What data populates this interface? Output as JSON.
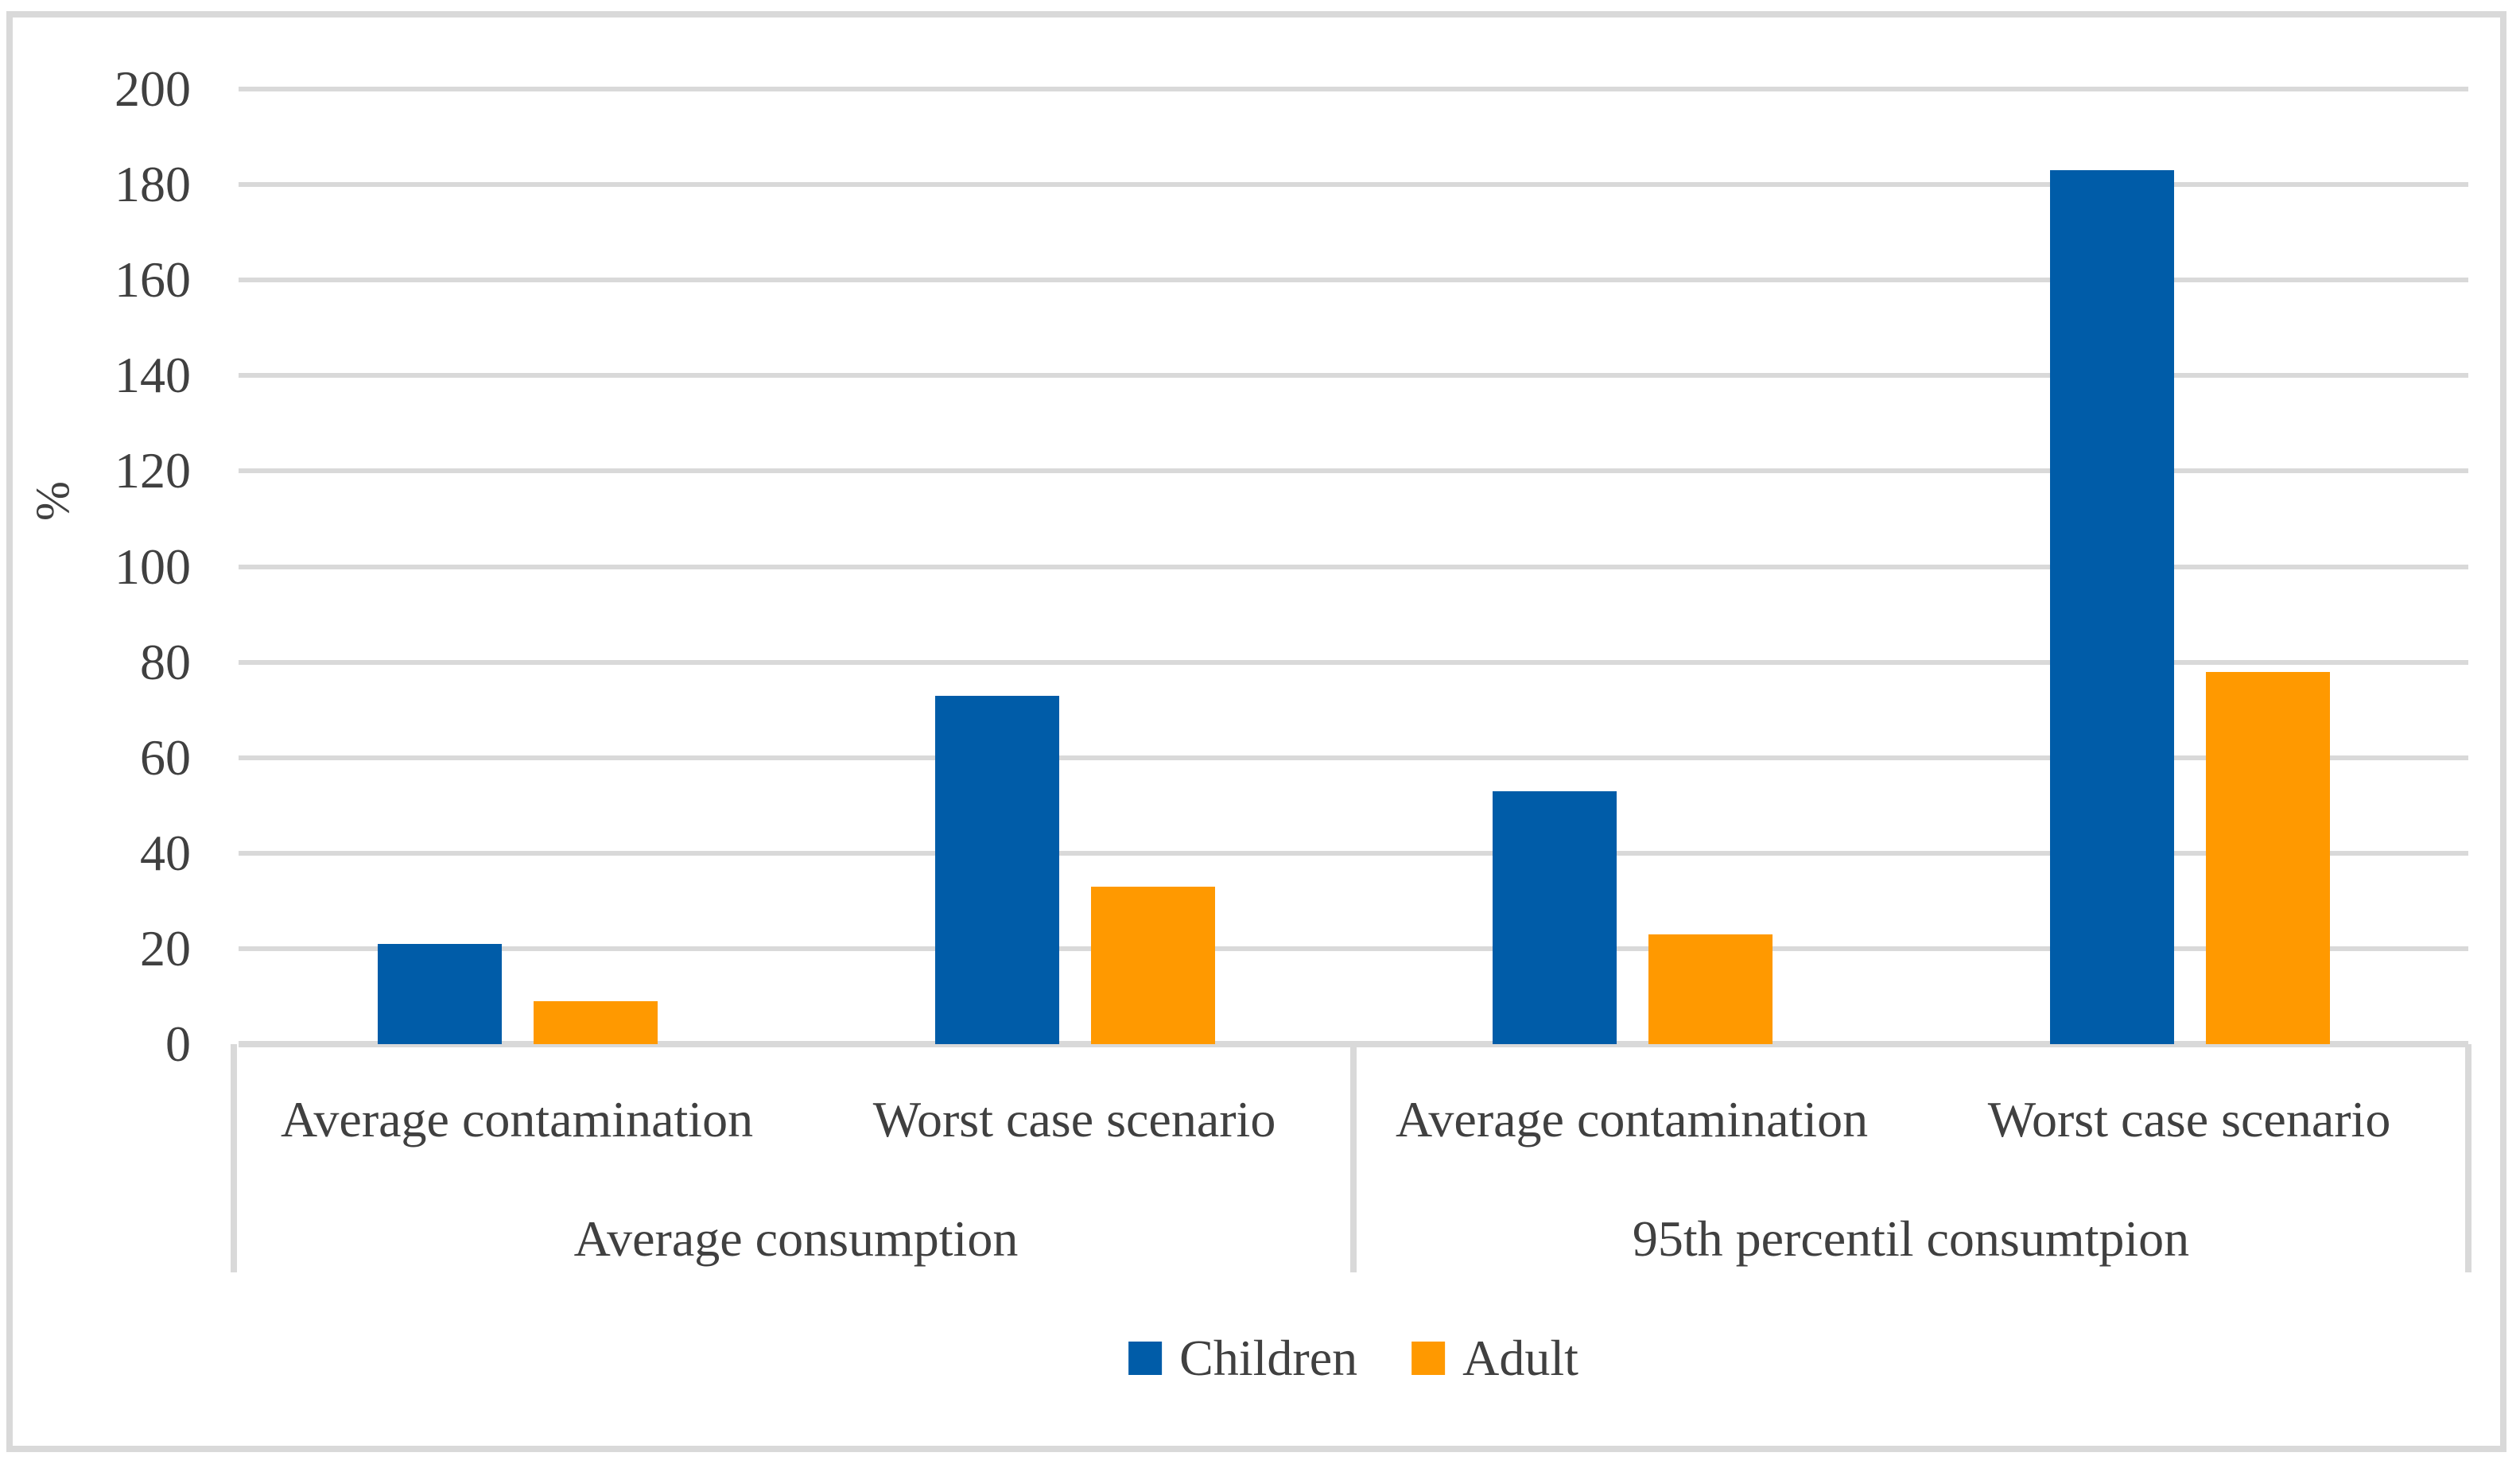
{
  "figure": {
    "kind": "grouped-bar-chart-figure",
    "background": "#FFFFFF",
    "frame_color": "#D9D9D9",
    "text_color": "#404040"
  },
  "chart_data": {
    "type": "bar",
    "title": "",
    "xlabel": "",
    "ylabel": "%",
    "ylim": [
      0,
      200
    ],
    "yticks": [
      0,
      20,
      40,
      60,
      80,
      100,
      120,
      140,
      160,
      180,
      200
    ],
    "ytick_labels": [
      "0",
      "20",
      "40",
      "60",
      "80",
      "100",
      "120",
      "140",
      "160",
      "180",
      "200"
    ],
    "grid": "horizontal",
    "gridline_color": "#D9D9D9",
    "legend_position": "bottom-center",
    "groups": [
      {
        "label": "Average consumption",
        "categories": [
          "Average contamination",
          "Worst case scenario"
        ]
      },
      {
        "label": "95th percentil consumtpion",
        "categories": [
          "Average contamination",
          "Worst case scenario"
        ]
      }
    ],
    "category_slots": [
      "Average consumption / Average contamination",
      "Average consumption / Worst case scenario",
      "95th percentil consumtpion / Average contamination",
      "95th percentil consumtpion / Worst case scenario"
    ],
    "series": [
      {
        "name": "Children",
        "color": "#005CA8",
        "values": [
          21,
          73,
          53,
          183
        ]
      },
      {
        "name": "Adult",
        "color": "#FF9900",
        "values": [
          9,
          33,
          23,
          78
        ]
      }
    ]
  }
}
